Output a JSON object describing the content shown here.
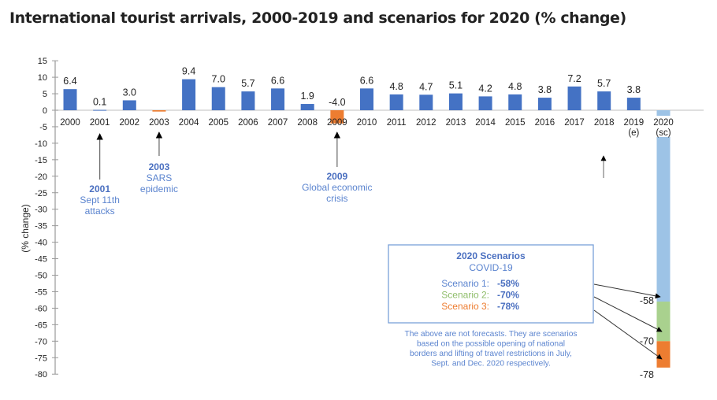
{
  "title": "International tourist arrivals, 2000-2019 and scenarios for 2020 (% change)",
  "chart_data": {
    "type": "bar",
    "title": "International tourist arrivals, 2000-2019 and scenarios for 2020 (% change)",
    "xlabel": "",
    "ylabel": "(% change)",
    "ylim": [
      -80,
      15
    ],
    "yticks": [
      15,
      10,
      5,
      0,
      -5,
      -10,
      -15,
      -20,
      -25,
      -30,
      -35,
      -40,
      -45,
      -50,
      -55,
      -60,
      -65,
      -70,
      -75,
      -80
    ],
    "grid": false,
    "categories": [
      "2000",
      "2001",
      "2002",
      "2003",
      "2004",
      "2005",
      "2006",
      "2007",
      "2008",
      "2009",
      "2010",
      "2011",
      "2012",
      "2013",
      "2014",
      "2015",
      "2016",
      "2017",
      "2018",
      "2019",
      "2020"
    ],
    "category_sublabels": {
      "2019": "(e)",
      "2020": "(sc)"
    },
    "values": [
      6.4,
      0.1,
      3.0,
      -0.4,
      9.4,
      7.0,
      5.7,
      6.6,
      1.9,
      -4.0,
      6.6,
      4.8,
      4.7,
      5.1,
      4.2,
      4.8,
      3.8,
      7.2,
      5.7,
      3.8,
      null
    ],
    "data_labels": [
      "6.4",
      "0.1",
      "3.0",
      "",
      "9.4",
      "7.0",
      "5.7",
      "6.6",
      "1.9",
      "-4.0",
      "6.6",
      "4.8",
      "4.7",
      "5.1",
      "4.2",
      "4.8",
      "3.8",
      "7.2",
      "5.7",
      "3.8",
      ""
    ],
    "highlight_negative_years": [
      "2003",
      "2009"
    ],
    "scenarios_2020": [
      {
        "name": "Scenario 1",
        "value": -58,
        "label": "-58",
        "color": "#9dc3e6"
      },
      {
        "name": "Scenario 2",
        "value": -70,
        "label": "-70",
        "color": "#a9d18e"
      },
      {
        "name": "Scenario 3",
        "value": -78,
        "label": "-78",
        "color": "#ed7d31"
      }
    ],
    "colors": {
      "positive": "#4472c4",
      "negative": "#ed7d31",
      "annotation": "#5b84cf",
      "annotation_bold": "#4a6fc0"
    },
    "annotations": [
      {
        "year": "2001",
        "heading": "2001",
        "lines": [
          "Sept 11th",
          "attacks"
        ]
      },
      {
        "year": "2003",
        "heading": "2003",
        "lines": [
          "SARS",
          "epidemic"
        ]
      },
      {
        "year": "2009",
        "heading": "2009",
        "lines": [
          "Global economic",
          "crisis"
        ]
      }
    ],
    "scenario_box": {
      "title": "2020 Scenarios",
      "subtitle": "COVID-19",
      "rows": [
        {
          "label": "Scenario 1:",
          "value": "-58%",
          "color": "#5b84cf"
        },
        {
          "label": "Scenario 2:",
          "value": "-70%",
          "color": "#8fbd6a"
        },
        {
          "label": "Scenario 3:",
          "value": "-78%",
          "color": "#ed7d31"
        }
      ],
      "note": [
        "The above are not forecasts. They are scenarios",
        "based on the possible opening of national",
        "borders and lifting of travel restrictions in July,",
        "Sept. and Dec. 2020 respectively."
      ]
    }
  }
}
